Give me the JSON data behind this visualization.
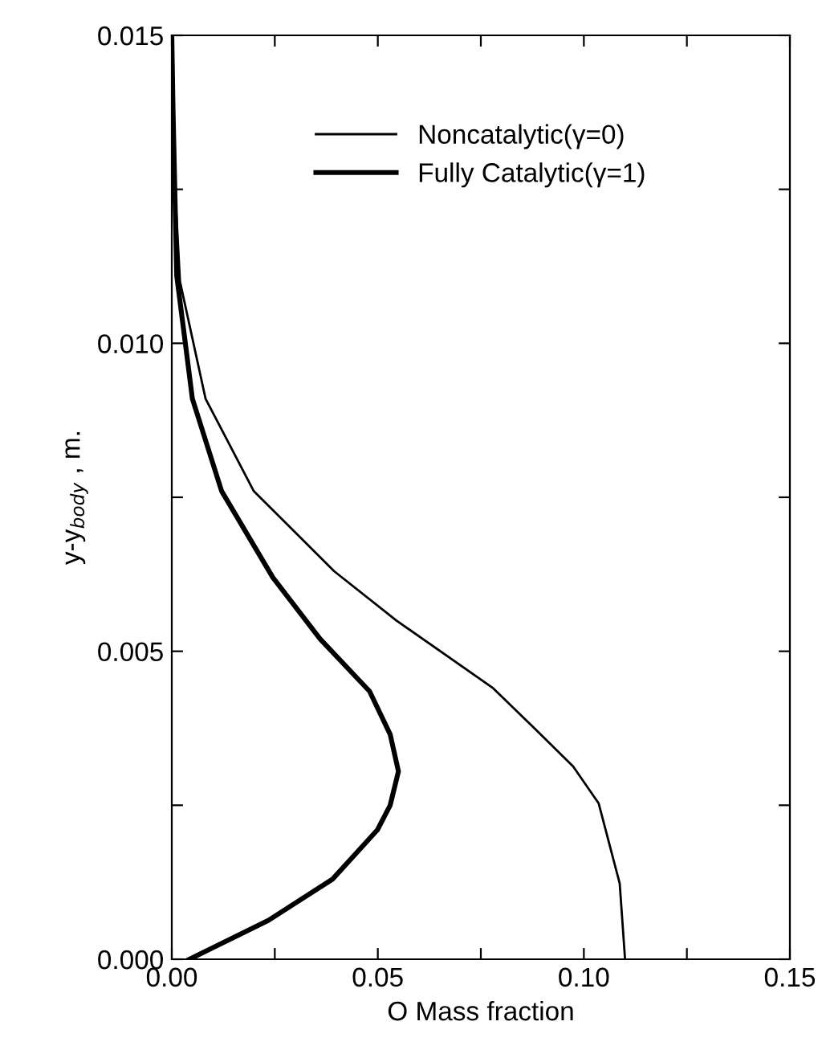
{
  "chart_data": {
    "type": "line",
    "xlabel": "O Mass fraction",
    "ylabel": "y-y$_{body}$ , m.",
    "xlim": [
      0,
      0.15
    ],
    "ylim": [
      0,
      0.015
    ],
    "xticks": [
      {
        "value": 0,
        "label": "0.00"
      },
      {
        "value": 0.025,
        "label": null
      },
      {
        "value": 0.05,
        "label": "0.05"
      },
      {
        "value": 0.075,
        "label": null
      },
      {
        "value": 0.1,
        "label": "0.10"
      },
      {
        "value": 0.125,
        "label": null
      },
      {
        "value": 0.15,
        "label": "0.15"
      }
    ],
    "yticks": [
      {
        "value": 0,
        "label": "0.000"
      },
      {
        "value": 0.0025,
        "label": null
      },
      {
        "value": 0.005,
        "label": "0.005"
      },
      {
        "value": 0.0075,
        "label": null
      },
      {
        "value": 0.01,
        "label": "0.010"
      },
      {
        "value": 0.0125,
        "label": null
      },
      {
        "value": 0.015,
        "label": "0.015"
      }
    ],
    "grid": false,
    "legend": "top",
    "marker": "none",
    "line_style": "solid",
    "series": [
      {
        "name": "Noncatalytic(γ=0)",
        "color": "#000000",
        "x": [
          0.11,
          0.1087,
          0.1036,
          0.0974,
          0.088,
          0.078,
          0.0545,
          0.0394,
          0.0199,
          0.0082,
          0.002,
          0.0004,
          0.0
        ],
        "values": [
          0.0,
          0.00123,
          0.00253,
          0.00313,
          0.00375,
          0.0044,
          0.0055,
          0.0063,
          0.0076,
          0.0091,
          0.011,
          0.013,
          0.015
        ]
      },
      {
        "name": "Fully Catalytic(γ=1)",
        "color": "#000000",
        "x": [
          0.0043,
          0.0234,
          0.039,
          0.0499,
          0.053,
          0.055,
          0.053,
          0.048,
          0.036,
          0.0245,
          0.0121,
          0.005,
          0.0012,
          0.0003,
          0.0
        ],
        "values": [
          0.0,
          0.00063,
          0.0013,
          0.0021,
          0.0025,
          0.00305,
          0.00365,
          0.00435,
          0.0052,
          0.0062,
          0.0076,
          0.0091,
          0.0111,
          0.0138,
          0.015
        ]
      }
    ]
  }
}
